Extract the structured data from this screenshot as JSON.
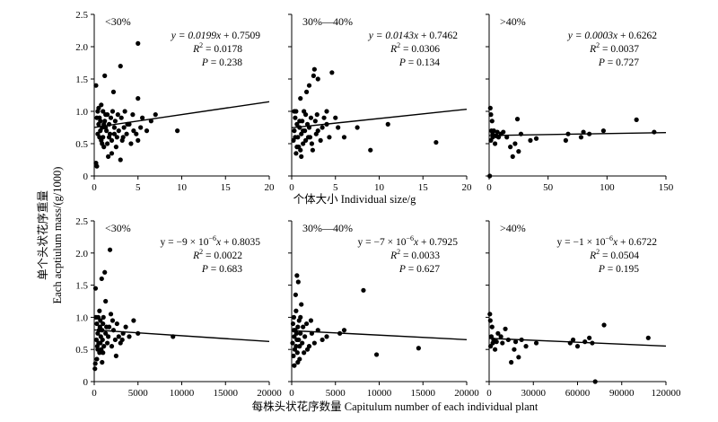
{
  "figure": {
    "ylabel_line1": "单个头状花序重量",
    "ylabel_line2": "Each acptiulum mass/(g/1000)",
    "xlabel_row1": "个体大小 Individual size/g",
    "xlabel_row2": "每株头状花序数量 Capitulum number of each individual plant"
  },
  "chart_data": [
    {
      "type": "scatter",
      "panel_label": "<30%",
      "equation": {
        "lead": "y = 0.0199",
        "var": "x",
        "tail": " + 0.7509"
      },
      "r2_value": " = 0.0178",
      "p_value": " = 0.238",
      "xlim": [
        0,
        20
      ],
      "ylim": [
        0,
        2.5
      ],
      "xticks": [
        0,
        5,
        10,
        15,
        20
      ],
      "xtick_labels": [
        "0",
        "5",
        "10",
        "15",
        "20"
      ],
      "yticks": [
        0,
        0.5,
        1,
        1.5,
        2,
        2.5
      ],
      "ytick_labels": [
        "0",
        "0.5",
        "1.0",
        "1.5",
        "2.0",
        "2.5"
      ],
      "fit": {
        "slope": 0.0199,
        "intercept": 0.7509
      },
      "points": [
        [
          0.2,
          0.2
        ],
        [
          0.3,
          0.15
        ],
        [
          0.2,
          1.4
        ],
        [
          0.5,
          1.05
        ],
        [
          0.4,
          0.65
        ],
        [
          0.6,
          0.9
        ],
        [
          0.7,
          0.7
        ],
        [
          0.8,
          0.55
        ],
        [
          0.9,
          0.75
        ],
        [
          1,
          1.0
        ],
        [
          1,
          0.6
        ],
        [
          1.1,
          0.45
        ],
        [
          1.2,
          0.85
        ],
        [
          1.3,
          0.95
        ],
        [
          1.4,
          0.7
        ],
        [
          1.5,
          0.5
        ],
        [
          1.6,
          0.3
        ],
        [
          1.7,
          0.8
        ],
        [
          1.8,
          0.65
        ],
        [
          1.9,
          0.9
        ],
        [
          2,
          0.55
        ],
        [
          2.1,
          1.0
        ],
        [
          2.2,
          1.3
        ],
        [
          2.3,
          0.75
        ],
        [
          2.4,
          0.85
        ],
        [
          2.5,
          0.45
        ],
        [
          2.6,
          0.6
        ],
        [
          2.8,
          0.7
        ],
        [
          3,
          0.25
        ],
        [
          3,
          1.7
        ],
        [
          3.1,
          0.9
        ],
        [
          3.2,
          0.55
        ],
        [
          3.4,
          0.75
        ],
        [
          3.5,
          1.0
        ],
        [
          3.7,
          0.65
        ],
        [
          4,
          0.8
        ],
        [
          4.2,
          0.5
        ],
        [
          4.5,
          0.7
        ],
        [
          5,
          2.05
        ],
        [
          5,
          1.2
        ],
        [
          5,
          0.55
        ],
        [
          5.3,
          0.75
        ],
        [
          6,
          0.7
        ],
        [
          6.5,
          0.85
        ],
        [
          7,
          0.95
        ],
        [
          9.5,
          0.7
        ],
        [
          0.5,
          0.8
        ],
        [
          0.8,
          1.1
        ],
        [
          1.2,
          1.55
        ],
        [
          0.3,
          0.9
        ],
        [
          1.5,
          0.95
        ],
        [
          2,
          0.35
        ],
        [
          0.6,
          0.6
        ],
        [
          0.9,
          0.5
        ],
        [
          1.7,
          0.6
        ],
        [
          2.7,
          0.95
        ],
        [
          3.8,
          0.8
        ],
        [
          4.4,
          0.95
        ],
        [
          5.5,
          0.9
        ],
        [
          0.4,
          1.0
        ],
        [
          1.3,
          0.75
        ],
        [
          2.3,
          0.65
        ],
        [
          1.1,
          0.8
        ],
        [
          0.7,
          0.85
        ],
        [
          3.3,
          0.6
        ],
        [
          4.8,
          0.65
        ]
      ]
    },
    {
      "type": "scatter",
      "panel_label": "30%—40%",
      "equation": {
        "lead": "y = 0.0143",
        "var": "x",
        "tail": " + 0.7462"
      },
      "r2_value": " = 0.0306",
      "p_value": " = 0.134",
      "xlim": [
        0,
        20
      ],
      "ylim": [
        0,
        2.5
      ],
      "xticks": [
        0,
        5,
        10,
        15,
        20
      ],
      "xtick_labels": [
        "0",
        "5",
        "10",
        "15",
        "20"
      ],
      "yticks": [
        0,
        0.5,
        1,
        1.5,
        2,
        2.5
      ],
      "ytick_labels": [],
      "fit": {
        "slope": 0.0143,
        "intercept": 0.7462
      },
      "points": [
        [
          0.2,
          0.55
        ],
        [
          0.3,
          0.7
        ],
        [
          0.4,
          0.9
        ],
        [
          0.5,
          0.35
        ],
        [
          0.5,
          1.0
        ],
        [
          0.6,
          0.8
        ],
        [
          0.7,
          0.6
        ],
        [
          0.8,
          0.45
        ],
        [
          0.9,
          0.75
        ],
        [
          1,
          0.4
        ],
        [
          1,
          1.2
        ],
        [
          1.1,
          0.65
        ],
        [
          1.2,
          0.85
        ],
        [
          1.3,
          0.5
        ],
        [
          1.4,
          1.0
        ],
        [
          1.5,
          0.7
        ],
        [
          1.6,
          0.55
        ],
        [
          1.7,
          1.3
        ],
        [
          1.8,
          0.8
        ],
        [
          1.9,
          0.6
        ],
        [
          2,
          1.4
        ],
        [
          2,
          0.75
        ],
        [
          2.2,
          0.9
        ],
        [
          2.3,
          0.5
        ],
        [
          2.5,
          1.55
        ],
        [
          2.6,
          1.65
        ],
        [
          2.7,
          0.85
        ],
        [
          2.8,
          0.65
        ],
        [
          3,
          1.5
        ],
        [
          3,
          0.7
        ],
        [
          3.3,
          0.55
        ],
        [
          3.5,
          0.75
        ],
        [
          4,
          0.8
        ],
        [
          4,
          1.0
        ],
        [
          4.3,
          0.6
        ],
        [
          4.6,
          1.6
        ],
        [
          5,
          0.9
        ],
        [
          5.3,
          0.75
        ],
        [
          6,
          0.6
        ],
        [
          7.5,
          0.75
        ],
        [
          9,
          0.4
        ],
        [
          11,
          0.8
        ],
        [
          16.5,
          0.52
        ],
        [
          0.3,
          1.0
        ],
        [
          0.6,
          0.45
        ],
        [
          1.1,
          0.3
        ],
        [
          1.6,
          0.95
        ],
        [
          2.4,
          0.4
        ],
        [
          3.7,
          0.9
        ],
        [
          0.9,
          0.85
        ],
        [
          1.3,
          0.7
        ],
        [
          2.1,
          0.6
        ],
        [
          0.4,
          0.6
        ],
        [
          2.9,
          0.95
        ]
      ]
    },
    {
      "type": "scatter",
      "panel_label": ">40%",
      "equation": {
        "lead": "y = 0.0003",
        "var": "x",
        "tail": " + 0.6262"
      },
      "r2_value": " = 0.0037",
      "p_value": " = 0.727",
      "xlim": [
        0,
        150
      ],
      "ylim": [
        0,
        2.5
      ],
      "xticks": [
        0,
        50,
        100,
        150
      ],
      "xtick_labels": [
        "0",
        "50",
        "100",
        "150"
      ],
      "yticks": [
        0,
        0.5,
        1,
        1.5,
        2,
        2.5
      ],
      "ytick_labels": [],
      "fit": {
        "slope": 0.0003,
        "intercept": 0.6262
      },
      "points": [
        [
          0.5,
          0.0
        ],
        [
          1,
          1.05
        ],
        [
          1.5,
          0.95
        ],
        [
          1.5,
          0.55
        ],
        [
          2,
          0.7
        ],
        [
          2.5,
          0.85
        ],
        [
          3,
          0.6
        ],
        [
          3,
          0.65
        ],
        [
          4,
          0.7
        ],
        [
          5,
          0.5
        ],
        [
          6,
          0.62
        ],
        [
          7,
          0.68
        ],
        [
          8,
          0.6
        ],
        [
          10,
          0.65
        ],
        [
          12,
          0.68
        ],
        [
          15,
          0.6
        ],
        [
          18,
          0.45
        ],
        [
          20,
          0.3
        ],
        [
          22,
          0.5
        ],
        [
          24,
          0.88
        ],
        [
          25,
          0.38
        ],
        [
          27,
          0.65
        ],
        [
          35,
          0.55
        ],
        [
          40,
          0.58
        ],
        [
          65,
          0.55
        ],
        [
          67,
          0.65
        ],
        [
          78,
          0.6
        ],
        [
          80,
          0.68
        ],
        [
          85,
          0.65
        ],
        [
          97,
          0.7
        ],
        [
          125,
          0.87
        ],
        [
          140,
          0.68
        ]
      ]
    },
    {
      "type": "scatter",
      "panel_label": "<30%",
      "equation": {
        "lead": "y = −9 × 10",
        "exp": "−6",
        "var": "x",
        "tail": " + 0.8035"
      },
      "r2_value": " = 0.0022",
      "p_value": " = 0.683",
      "xlim": [
        0,
        20000
      ],
      "ylim": [
        0,
        2.5
      ],
      "xticks": [
        0,
        5000,
        10000,
        15000,
        20000
      ],
      "xtick_labels": [
        "0",
        "5000",
        "10000",
        "15000",
        "20000"
      ],
      "yticks": [
        0,
        0.5,
        1,
        1.5,
        2,
        2.5
      ],
      "ytick_labels": [
        "0",
        "0.5",
        "1.0",
        "1.5",
        "2.0",
        "2.5"
      ],
      "fit": {
        "slope": -9e-06,
        "intercept": 0.8035
      },
      "points": [
        [
          80,
          0.2
        ],
        [
          120,
          0.28
        ],
        [
          150,
          1.45
        ],
        [
          200,
          1.0
        ],
        [
          250,
          0.65
        ],
        [
          300,
          0.9
        ],
        [
          350,
          0.55
        ],
        [
          400,
          0.75
        ],
        [
          450,
          1.0
        ],
        [
          500,
          0.6
        ],
        [
          550,
          0.8
        ],
        [
          600,
          0.45
        ],
        [
          650,
          0.85
        ],
        [
          700,
          0.95
        ],
        [
          750,
          0.7
        ],
        [
          800,
          0.5
        ],
        [
          850,
          1.6
        ],
        [
          900,
          0.8
        ],
        [
          950,
          0.65
        ],
        [
          1000,
          0.9
        ],
        [
          1050,
          1.0
        ],
        [
          1100,
          0.55
        ],
        [
          1200,
          1.7
        ],
        [
          1300,
          0.75
        ],
        [
          1400,
          0.85
        ],
        [
          1500,
          0.6
        ],
        [
          1600,
          0.7
        ],
        [
          1800,
          2.05
        ],
        [
          1900,
          1.05
        ],
        [
          2000,
          0.55
        ],
        [
          2200,
          0.8
        ],
        [
          2400,
          0.65
        ],
        [
          2600,
          0.9
        ],
        [
          2800,
          0.7
        ],
        [
          3000,
          0.6
        ],
        [
          3300,
          0.75
        ],
        [
          3600,
          0.85
        ],
        [
          4000,
          0.7
        ],
        [
          4500,
          0.95
        ],
        [
          5000,
          0.75
        ],
        [
          9000,
          0.7
        ],
        [
          300,
          0.35
        ],
        [
          600,
          1.1
        ],
        [
          900,
          0.3
        ],
        [
          1300,
          1.25
        ],
        [
          1700,
          0.85
        ],
        [
          2100,
          0.95
        ],
        [
          2500,
          0.4
        ],
        [
          3200,
          0.65
        ],
        [
          400,
          0.5
        ],
        [
          700,
          0.6
        ],
        [
          1000,
          0.45
        ]
      ]
    },
    {
      "type": "scatter",
      "panel_label": "30%—40%",
      "equation": {
        "lead": "y = −7 × 10",
        "exp": "−6",
        "var": "x",
        "tail": " + 0.7925"
      },
      "r2_value": " = 0.0033",
      "p_value": " = 0.627",
      "xlim": [
        0,
        20000
      ],
      "ylim": [
        0,
        2.5
      ],
      "xticks": [
        0,
        5000,
        10000,
        15000,
        20000
      ],
      "xtick_labels": [
        "0",
        "5000",
        "10000",
        "15000",
        "20000"
      ],
      "yticks": [
        0,
        0.5,
        1,
        1.5,
        2,
        2.5
      ],
      "ytick_labels": [],
      "fit": {
        "slope": -7e-06,
        "intercept": 0.7925
      },
      "points": [
        [
          100,
          0.6
        ],
        [
          150,
          0.9
        ],
        [
          200,
          0.4
        ],
        [
          250,
          1.0
        ],
        [
          300,
          0.7
        ],
        [
          350,
          0.5
        ],
        [
          400,
          0.8
        ],
        [
          450,
          1.35
        ],
        [
          500,
          0.55
        ],
        [
          550,
          0.75
        ],
        [
          600,
          1.65
        ],
        [
          650,
          0.45
        ],
        [
          700,
          0.85
        ],
        [
          750,
          1.55
        ],
        [
          800,
          0.65
        ],
        [
          850,
          0.95
        ],
        [
          900,
          0.35
        ],
        [
          1000,
          0.75
        ],
        [
          1100,
          1.2
        ],
        [
          1200,
          0.6
        ],
        [
          1300,
          0.85
        ],
        [
          1500,
          0.7
        ],
        [
          1700,
          0.9
        ],
        [
          2000,
          0.55
        ],
        [
          2300,
          0.75
        ],
        [
          2600,
          0.6
        ],
        [
          3000,
          0.8
        ],
        [
          3500,
          0.65
        ],
        [
          4000,
          0.7
        ],
        [
          5500,
          0.75
        ],
        [
          6000,
          0.8
        ],
        [
          8200,
          1.42
        ],
        [
          9700,
          0.42
        ],
        [
          14500,
          0.52
        ],
        [
          300,
          0.25
        ],
        [
          500,
          1.1
        ],
        [
          700,
          0.3
        ],
        [
          1000,
          1.0
        ],
        [
          1400,
          0.45
        ],
        [
          1800,
          0.5
        ],
        [
          2200,
          0.95
        ],
        [
          250,
          0.8
        ],
        [
          600,
          0.65
        ],
        [
          900,
          0.55
        ]
      ]
    },
    {
      "type": "scatter",
      "panel_label": ">40%",
      "equation": {
        "lead": "y = −1 × 10",
        "exp": "−6",
        "var": "x",
        "tail": " + 0.6722"
      },
      "r2_value": " = 0.0504",
      "p_value": " = 0.195",
      "xlim": [
        0,
        120000
      ],
      "ylim": [
        0,
        2.5
      ],
      "xticks": [
        0,
        30000,
        60000,
        90000,
        120000
      ],
      "xtick_labels": [
        "0",
        "30000",
        "60000",
        "90000",
        "120000"
      ],
      "yticks": [
        0,
        0.5,
        1,
        1.5,
        2,
        2.5
      ],
      "ytick_labels": [],
      "fit": {
        "slope": -1e-06,
        "intercept": 0.6722
      },
      "points": [
        [
          500,
          1.05
        ],
        [
          800,
          0.95
        ],
        [
          1000,
          0.55
        ],
        [
          1500,
          0.7
        ],
        [
          2000,
          0.85
        ],
        [
          2500,
          0.6
        ],
        [
          3000,
          0.65
        ],
        [
          4000,
          0.5
        ],
        [
          5000,
          0.62
        ],
        [
          6000,
          0.75
        ],
        [
          8000,
          0.7
        ],
        [
          9000,
          0.6
        ],
        [
          11000,
          0.82
        ],
        [
          13000,
          0.65
        ],
        [
          15000,
          0.3
        ],
        [
          17000,
          0.5
        ],
        [
          18000,
          0.62
        ],
        [
          20000,
          0.38
        ],
        [
          22000,
          0.65
        ],
        [
          25000,
          0.55
        ],
        [
          32000,
          0.6
        ],
        [
          55000,
          0.6
        ],
        [
          57000,
          0.65
        ],
        [
          60000,
          0.55
        ],
        [
          65000,
          0.62
        ],
        [
          68000,
          0.68
        ],
        [
          70000,
          0.6
        ],
        [
          72000,
          0.0
        ],
        [
          78000,
          0.88
        ],
        [
          108000,
          0.68
        ]
      ]
    }
  ]
}
